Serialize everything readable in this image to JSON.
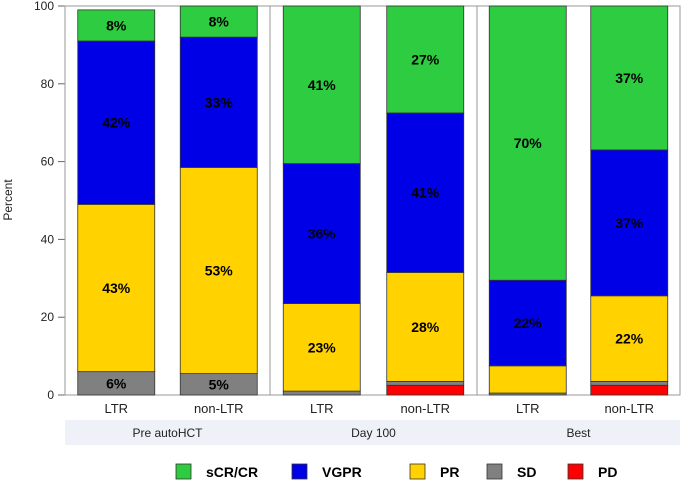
{
  "chart_data": {
    "type": "bar",
    "stacked": true,
    "ylabel": "Percent",
    "ylim": [
      0,
      100
    ],
    "yticks": [
      0,
      20,
      40,
      60,
      80,
      100
    ],
    "grid": false,
    "legend_position": "bottom",
    "groups": [
      {
        "name": "Pre autoHCT",
        "bars": [
          {
            "category": "LTR",
            "segments": {
              "SD": 6,
              "PR": 43,
              "VGPR": 42,
              "sCR/CR": 8
            },
            "labels": {
              "SD": "6%",
              "PR": "43%",
              "VGPR": "42%",
              "sCR/CR": "8%"
            }
          },
          {
            "category": "non-LTR",
            "segments": {
              "SD": 5.5,
              "PR": 53,
              "VGPR": 33.5,
              "sCR/CR": 8
            },
            "labels": {
              "SD": "5%",
              "PR": "53%",
              "VGPR": "33%",
              "sCR/CR": "8%"
            }
          }
        ]
      },
      {
        "name": "Day 100",
        "bars": [
          {
            "category": "LTR",
            "segments": {
              "SD": 1,
              "PR": 22.5,
              "VGPR": 36,
              "sCR/CR": 40.5
            },
            "labels": {
              "PR": "23%",
              "VGPR": "36%",
              "sCR/CR": "41%"
            }
          },
          {
            "category": "non-LTR",
            "segments": {
              "PD": 2.5,
              "SD": 1,
              "PR": 28,
              "VGPR": 41,
              "sCR/CR": 27.5
            },
            "labels": {
              "PR": "28%",
              "VGPR": "41%",
              "sCR/CR": "27%"
            }
          }
        ]
      },
      {
        "name": "Best",
        "bars": [
          {
            "category": "LTR",
            "segments": {
              "SD": 0.5,
              "PR": 7,
              "VGPR": 22,
              "sCR/CR": 70.5
            },
            "labels": {
              "VGPR": "22%",
              "sCR/CR": "70%"
            }
          },
          {
            "category": "non-LTR",
            "segments": {
              "PD": 2.5,
              "SD": 1,
              "PR": 22,
              "VGPR": 37.5,
              "sCR/CR": 37
            },
            "labels": {
              "PR": "22%",
              "VGPR": "37%",
              "sCR/CR": "37%"
            }
          }
        ]
      }
    ],
    "stack_order": [
      "PD",
      "SD",
      "PR",
      "VGPR",
      "sCR/CR"
    ],
    "legend": [
      {
        "name": "sCR/CR",
        "color": "#2ecc40"
      },
      {
        "name": "VGPR",
        "color": "#0000e6"
      },
      {
        "name": "PR",
        "color": "#ffd200"
      },
      {
        "name": "SD",
        "color": "#808080"
      },
      {
        "name": "PD",
        "color": "#ff0000"
      }
    ]
  }
}
